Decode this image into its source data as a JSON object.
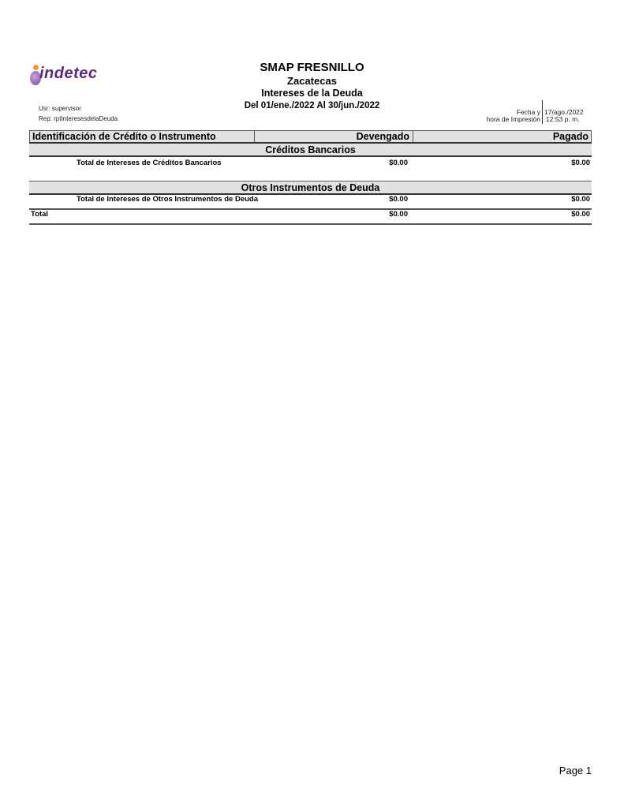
{
  "logo": {
    "text": "indetec"
  },
  "header": {
    "entity": "SMAP FRESNILLO",
    "state": "Zacatecas",
    "report_title": "Intereses de la Deuda",
    "period": "Del 01/ene./2022 Al 30/jun./2022",
    "user": "Usr: supervisor",
    "report": "Rep: rptInteresesdelaDeuda",
    "print_label_1": "Fecha y",
    "print_label_2": "hora de Impresión",
    "print_date": "17/ago./2022",
    "print_time": "12:53 p. m."
  },
  "table": {
    "columns": [
      "Identificación de Crédito o Instrumento",
      "Devengado",
      "Pagado"
    ],
    "sections": [
      {
        "title": "Créditos Bancarios",
        "total_label": "Total de Intereses de Créditos Bancarios",
        "devengado": "$0.00",
        "pagado": "$0.00"
      },
      {
        "title": "Otros Instrumentos de Deuda",
        "total_label": "Total de Intereses de Otros Instrumentos de Deuda",
        "devengado": "$0.00",
        "pagado": "$0.00"
      }
    ],
    "total": {
      "label": "Total",
      "devengado": "$0.00",
      "pagado": "$0.00"
    }
  },
  "footer": {
    "page": "Page 1"
  }
}
